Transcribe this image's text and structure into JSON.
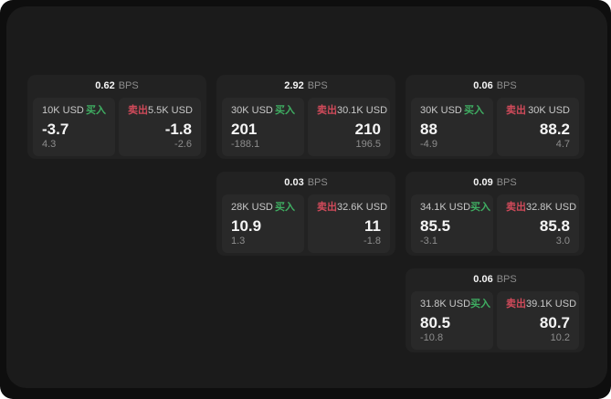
{
  "labels": {
    "buy": "买入",
    "sell": "卖出",
    "bps_unit": "BPS"
  },
  "colors": {
    "page_bg": "#0e0e0e",
    "panel_bg": "#1b1b1b",
    "card_bg": "#222222",
    "tile_bg": "#292929",
    "buy_green": "#3fae62",
    "sell_red": "#d04a5a",
    "text_primary": "#f5f5f5",
    "text_secondary": "#c8c8c8",
    "text_muted": "#8d8d8d"
  },
  "cards": [
    {
      "bps": "0.62",
      "row": 1,
      "col": 1,
      "buy": {
        "amount": "10K USD",
        "value": "-3.7",
        "change": "4.3"
      },
      "sell": {
        "amount": "5.5K USD",
        "value": "-1.8",
        "change": "-2.6"
      }
    },
    {
      "bps": "2.92",
      "row": 1,
      "col": 2,
      "buy": {
        "amount": "30K USD",
        "value": "201",
        "change": "-188.1"
      },
      "sell": {
        "amount": "30.1K USD",
        "value": "210",
        "change": "196.5"
      }
    },
    {
      "bps": "0.06",
      "row": 1,
      "col": 3,
      "buy": {
        "amount": "30K USD",
        "value": "88",
        "change": "-4.9"
      },
      "sell": {
        "amount": "30K USD",
        "value": "88.2",
        "change": "4.7"
      }
    },
    {
      "bps": "0.03",
      "row": 2,
      "col": 2,
      "buy": {
        "amount": "28K USD",
        "value": "10.9",
        "change": "1.3"
      },
      "sell": {
        "amount": "32.6K USD",
        "value": "11",
        "change": "-1.8"
      }
    },
    {
      "bps": "0.09",
      "row": 2,
      "col": 3,
      "buy": {
        "amount": "34.1K USD",
        "value": "85.5",
        "change": "-3.1"
      },
      "sell": {
        "amount": "32.8K USD",
        "value": "85.8",
        "change": "3.0"
      }
    },
    {
      "bps": "0.06",
      "row": 3,
      "col": 3,
      "buy": {
        "amount": "31.8K USD",
        "value": "80.5",
        "change": "-10.8"
      },
      "sell": {
        "amount": "39.1K USD",
        "value": "80.7",
        "change": "10.2"
      }
    }
  ]
}
